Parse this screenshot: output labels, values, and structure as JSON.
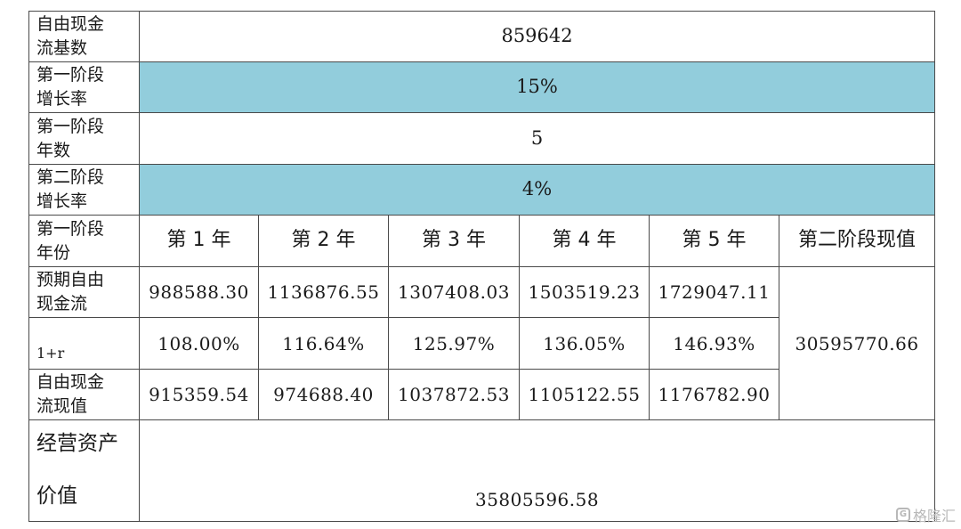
{
  "rows": {
    "base_fcf": {
      "label_lines": [
        "自由现金",
        "流基数"
      ],
      "value": "859642"
    },
    "stage1_growth": {
      "label_lines": [
        "第一阶段",
        "增长率"
      ],
      "value": "15%"
    },
    "stage1_years": {
      "label_lines": [
        "第一阶段",
        "年数"
      ],
      "value": "5"
    },
    "stage2_growth": {
      "label_lines": [
        "第二阶段",
        "增长率"
      ],
      "value": "4%"
    },
    "year_header": {
      "label_lines": [
        "第一阶段",
        "年份"
      ],
      "years": [
        "第 1 年",
        "第 2 年",
        "第 3 年",
        "第 4 年",
        "第 5 年"
      ],
      "stage2_pv_header": "第二阶段现值"
    },
    "expected_fcf": {
      "label_lines": [
        "预期自由",
        "现金流"
      ],
      "values": [
        "988588.30",
        "1136876.55",
        "1307408.03",
        "1503519.23",
        "1729047.11"
      ]
    },
    "one_plus_r": {
      "label": "1+r",
      "values": [
        "108.00%",
        "116.64%",
        "125.97%",
        "136.05%",
        "146.93%"
      ]
    },
    "fcf_pv": {
      "label_lines": [
        "自由现金",
        "流现值"
      ],
      "values": [
        "915359.54",
        "974688.40",
        "1037872.53",
        "1105122.55",
        "1176782.90"
      ]
    },
    "stage2_pv_value": "30595770.66",
    "operating_asset_value": {
      "label_lines": [
        "经营资产",
        "价值"
      ],
      "value": "35805596.58"
    }
  },
  "colors": {
    "highlight": "#92cddc",
    "border": "#4a4a4a"
  },
  "watermark": {
    "logo_icon": "gelonghui-logo-icon",
    "logo_letter": "G",
    "text": "格隆汇"
  }
}
